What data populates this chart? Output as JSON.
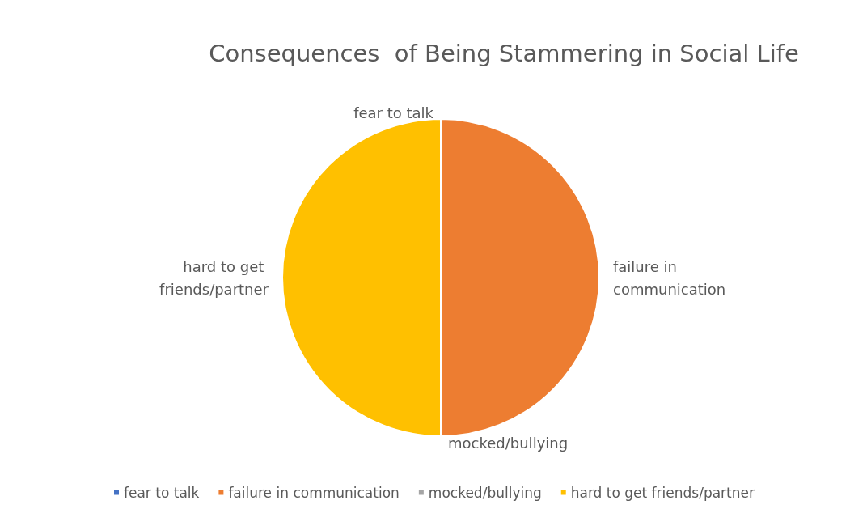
{
  "chart_data": {
    "type": "pie",
    "title": "Consequences  of Being Stammering in Social Life",
    "categories": [
      "fear to talk",
      "failure in communication",
      "mocked/bullying",
      "hard to get friends/partner"
    ],
    "values": [
      0,
      50,
      0,
      50
    ],
    "colors": [
      "#4472c4",
      "#ed7d31",
      "#a5a5a5",
      "#ffc000"
    ],
    "legend": "bottom"
  }
}
